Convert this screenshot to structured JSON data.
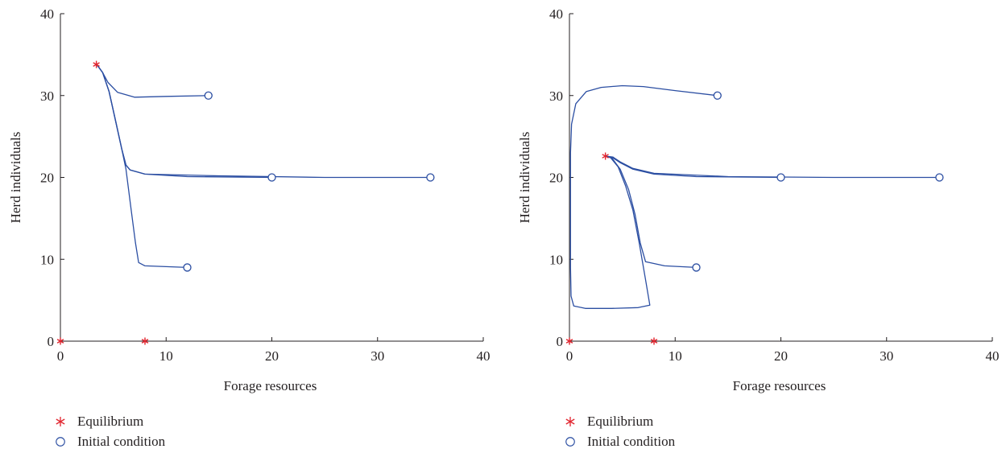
{
  "chart_data": [
    {
      "type": "line",
      "xlabel": "Forage resources",
      "ylabel": "Herd individuals",
      "xlim": [
        0,
        40
      ],
      "ylim": [
        0,
        40
      ],
      "xticks": [
        "0",
        "10",
        "20",
        "30",
        "40"
      ],
      "yticks": [
        "0",
        "10",
        "20",
        "30",
        "40"
      ],
      "grid": false,
      "legend_placement": "below-left",
      "legend": {
        "equilibrium": "Equilibrium",
        "initial": "Initial condition"
      },
      "colors": {
        "trajectory": "#2b4ea2",
        "equilibrium": "#e1242e",
        "axis": "#231f20"
      },
      "equilibria": [
        {
          "x": 0,
          "y": 0
        },
        {
          "x": 8,
          "y": 0
        },
        {
          "x": 3.4,
          "y": 33.8
        }
      ],
      "initial_conditions": [
        {
          "x": 14,
          "y": 30
        },
        {
          "x": 20,
          "y": 20
        },
        {
          "x": 35,
          "y": 20
        },
        {
          "x": 12,
          "y": 9
        }
      ],
      "series": [
        {
          "values": [
            [
              14,
              30
            ],
            [
              10,
              29.9
            ],
            [
              7,
              29.8
            ],
            [
              5.4,
              30.4
            ],
            [
              4.5,
              31.6
            ],
            [
              4,
              32.8
            ],
            [
              3.6,
              33.5
            ],
            [
              3.4,
              33.8
            ]
          ]
        },
        {
          "values": [
            [
              20,
              20
            ],
            [
              12,
              20.1
            ],
            [
              8,
              20.4
            ],
            [
              6.6,
              20.9
            ],
            [
              6.2,
              21.5
            ],
            [
              5.8,
              23.5
            ],
            [
              5.2,
              27
            ],
            [
              4.6,
              30.5
            ],
            [
              4,
              32.8
            ],
            [
              3.6,
              33.5
            ],
            [
              3.4,
              33.8
            ]
          ]
        },
        {
          "values": [
            [
              35,
              20
            ],
            [
              25,
              20
            ],
            [
              15,
              20.2
            ],
            [
              8,
              20.4
            ],
            [
              6.6,
              20.9
            ],
            [
              6.2,
              21.5
            ],
            [
              5.8,
              23.5
            ],
            [
              5.2,
              27
            ],
            [
              4.6,
              30.5
            ],
            [
              4,
              32.8
            ],
            [
              3.6,
              33.5
            ],
            [
              3.4,
              33.8
            ]
          ]
        },
        {
          "values": [
            [
              12,
              9
            ],
            [
              10,
              9.1
            ],
            [
              8,
              9.2
            ],
            [
              7.4,
              9.6
            ],
            [
              7.1,
              12
            ],
            [
              6.7,
              16
            ],
            [
              6.2,
              21
            ],
            [
              5.8,
              23.5
            ],
            [
              5.2,
              27
            ],
            [
              4.6,
              30.5
            ],
            [
              4,
              32.8
            ],
            [
              3.6,
              33.5
            ],
            [
              3.4,
              33.8
            ]
          ]
        }
      ]
    },
    {
      "type": "line",
      "xlabel": "Forage resources",
      "ylabel": "Herd individuals",
      "xlim": [
        0,
        40
      ],
      "ylim": [
        0,
        40
      ],
      "xticks": [
        "0",
        "10",
        "20",
        "30",
        "40"
      ],
      "yticks": [
        "0",
        "10",
        "20",
        "30",
        "40"
      ],
      "grid": false,
      "legend_placement": "below-left",
      "legend": {
        "equilibrium": "Equilibrium",
        "initial": "Initial condition"
      },
      "colors": {
        "trajectory": "#2b4ea2",
        "equilibrium": "#e1242e",
        "axis": "#231f20"
      },
      "equilibria": [
        {
          "x": 0,
          "y": 0
        },
        {
          "x": 8,
          "y": 0
        },
        {
          "x": 3.4,
          "y": 22.6
        }
      ],
      "initial_conditions": [
        {
          "x": 14,
          "y": 30
        },
        {
          "x": 20,
          "y": 20
        },
        {
          "x": 35,
          "y": 20
        },
        {
          "x": 12,
          "y": 9
        }
      ],
      "series": [
        {
          "values": [
            [
              14,
              30
            ],
            [
              10,
              30.6
            ],
            [
              7,
              31.1
            ],
            [
              5,
              31.2
            ],
            [
              3,
              31
            ],
            [
              1.6,
              30.5
            ],
            [
              0.6,
              29
            ],
            [
              0.2,
              26.5
            ],
            [
              0.1,
              23
            ],
            [
              0.1,
              16
            ],
            [
              0.1,
              9
            ],
            [
              0.15,
              5.5
            ],
            [
              0.4,
              4.3
            ],
            [
              1.5,
              4.0
            ],
            [
              4,
              4.0
            ],
            [
              6.5,
              4.1
            ],
            [
              7.6,
              4.4
            ],
            [
              7.2,
              7.5
            ],
            [
              6.6,
              12
            ],
            [
              6,
              16
            ],
            [
              5.3,
              19
            ],
            [
              4.6,
              21.3
            ],
            [
              3.9,
              22.4
            ],
            [
              3.4,
              22.6
            ]
          ]
        },
        {
          "values": [
            [
              20,
              20
            ],
            [
              12,
              20.1
            ],
            [
              8,
              20.4
            ],
            [
              6,
              21
            ],
            [
              4.8,
              21.8
            ],
            [
              4.1,
              22.4
            ],
            [
              3.4,
              22.6
            ]
          ]
        },
        {
          "values": [
            [
              35,
              20
            ],
            [
              25,
              20
            ],
            [
              15,
              20.1
            ],
            [
              8,
              20.5
            ],
            [
              6,
              21.1
            ],
            [
              4.8,
              21.9
            ],
            [
              4.1,
              22.5
            ],
            [
              3.4,
              22.6
            ]
          ]
        },
        {
          "values": [
            [
              12,
              9
            ],
            [
              9,
              9.2
            ],
            [
              7.2,
              9.7
            ],
            [
              6.7,
              12
            ],
            [
              6.2,
              15.5
            ],
            [
              5.6,
              18.5
            ],
            [
              4.8,
              21
            ],
            [
              4,
              22.4
            ],
            [
              3.4,
              22.6
            ]
          ]
        }
      ]
    }
  ]
}
